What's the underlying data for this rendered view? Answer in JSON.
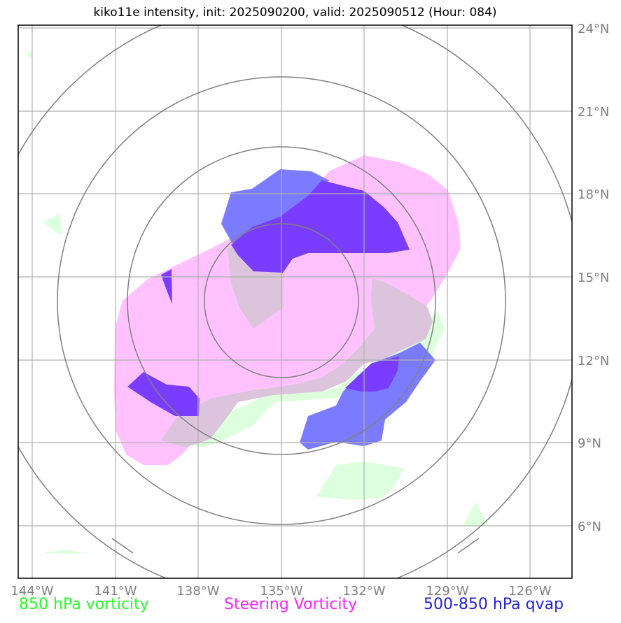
{
  "title": "kiko11e intensity, init: 2025090200, valid: 2025090512 (Hour: 084)",
  "lon_ticks": [
    "144°W",
    "141°W",
    "138°W",
    "135°W",
    "132°W",
    "129°W",
    "126°W"
  ],
  "lat_ticks": [
    "24°N",
    "21°N",
    "18°N",
    "15°N",
    "12°N",
    "9°N",
    "6°N"
  ],
  "legend": {
    "vorticity_850": {
      "label": "850 hPa vorticity",
      "color": "#22ff22"
    },
    "steering_vorticity": {
      "label": "Steering Vorticity",
      "color": "#ff22ff"
    },
    "qvap_500_850": {
      "label": "500-850 hPa qvap",
      "color": "#2222dd"
    }
  },
  "colors": {
    "vorticity_fill": "#ddffdd",
    "steering_fill": "#ffc2ff",
    "qvap_fill": "#7b7bff",
    "qvap_dark_fill": "#7a3cff",
    "overlap_fill": "#dcc4dc",
    "range_rings": "#808080",
    "gridlines": "#b0b0b0",
    "tick_text": "#808080"
  }
}
